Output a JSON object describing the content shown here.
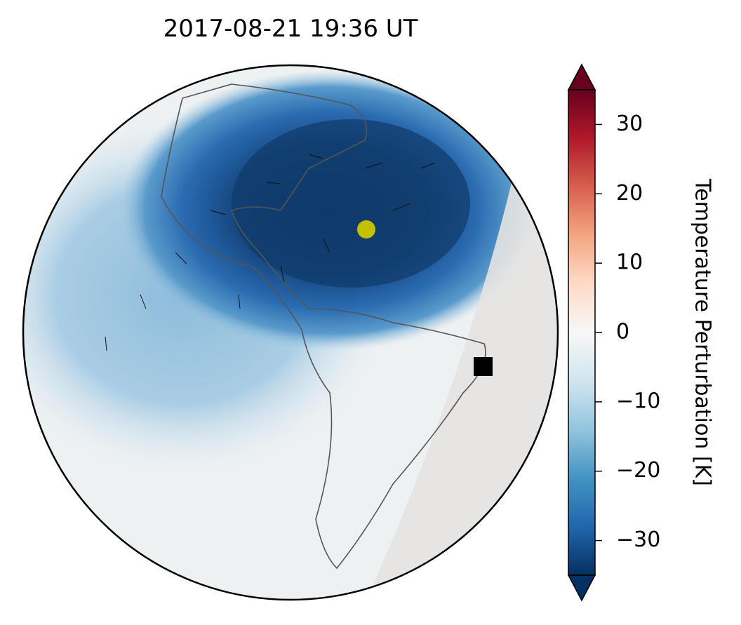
{
  "title": "2017-08-21  19:36 UT",
  "colorbar": {
    "label": "Temperature Perturbation [K]",
    "lim": [
      -35,
      35
    ],
    "ticks": [
      {
        "value": -30,
        "label": "−30"
      },
      {
        "value": -20,
        "label": "−20"
      },
      {
        "value": -10,
        "label": "−10"
      },
      0,
      10,
      20,
      30
    ]
  }
}
